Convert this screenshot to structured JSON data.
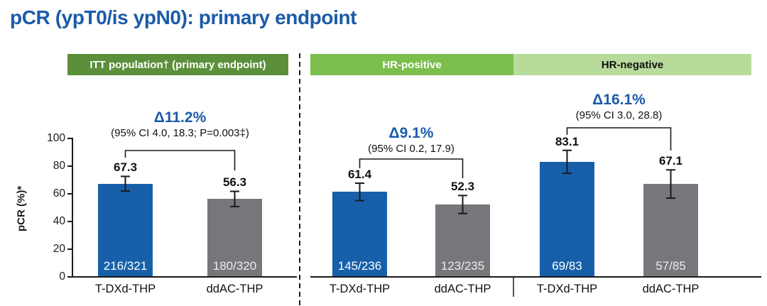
{
  "title": "pCR (ypT0/is ypN0): primary endpoint",
  "colors": {
    "title_blue": "#1B5BA8",
    "bar_blue": "#1760A9",
    "bar_gray": "#77777B",
    "band_dark_green": "#5B8F3A",
    "band_mid_green": "#7CBE4C",
    "band_light_green": "#B7DB9B"
  },
  "header_bands": [
    {
      "label": "ITT population† (primary endpoint)",
      "color": "#5B8F3A",
      "text_color": "#FFFFFF"
    },
    {
      "label": "HR-positive",
      "color": "#7CBE4C",
      "text_color": "#FFFFFF"
    },
    {
      "label": "HR-negative",
      "color": "#B7DB9B",
      "text_color": "#111111"
    }
  ],
  "y_axis": {
    "label": "pCR (%)*",
    "ticks": [
      0,
      20,
      40,
      60,
      80,
      100
    ],
    "max": 100
  },
  "chart_data": {
    "type": "bar",
    "title": "pCR (ypT0/is ypN0): primary endpoint",
    "ylabel": "pCR (%)*",
    "ylim": [
      0,
      100
    ],
    "grid": false,
    "legend": "none",
    "groups": [
      {
        "name": "ITT population† (primary endpoint)",
        "delta": "Δ11.2%",
        "ci": "(95% CI 4.0, 18.3; P=0.003‡)",
        "bars": [
          {
            "label": "T-DXd-THP",
            "value": 67.3,
            "fraction": "216/321",
            "err": 5.3,
            "color": "blue"
          },
          {
            "label": "ddAC-THP",
            "value": 56.3,
            "fraction": "180/320",
            "err": 5.5,
            "color": "gray"
          }
        ]
      },
      {
        "name": "HR-positive",
        "delta": "Δ9.1%",
        "ci": "(95% CI 0.2, 17.9)",
        "bars": [
          {
            "label": "T-DXd-THP",
            "value": 61.4,
            "fraction": "145/236",
            "err": 6.3,
            "color": "blue"
          },
          {
            "label": "ddAC-THP",
            "value": 52.3,
            "fraction": "123/235",
            "err": 6.5,
            "color": "gray"
          }
        ]
      },
      {
        "name": "HR-negative",
        "delta": "Δ16.1%",
        "ci": "(95% CI 3.0, 28.8)",
        "bars": [
          {
            "label": "T-DXd-THP",
            "value": 83.1,
            "fraction": "69/83",
            "err": 8.3,
            "color": "blue"
          },
          {
            "label": "ddAC-THP",
            "value": 67.1,
            "fraction": "57/85",
            "err": 10.2,
            "color": "gray"
          }
        ]
      }
    ]
  }
}
